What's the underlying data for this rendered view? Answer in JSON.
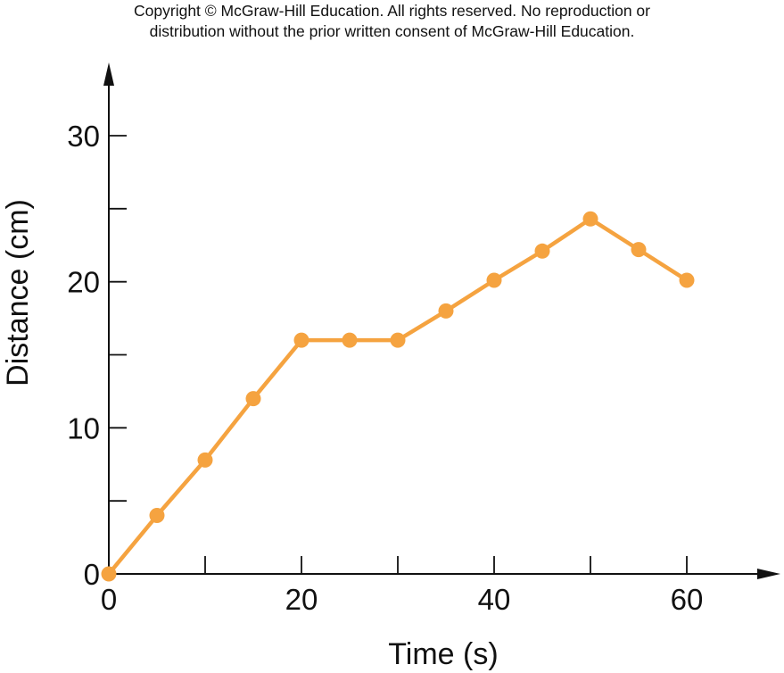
{
  "copyright": {
    "line1": "Copyright © McGraw-Hill Education.  All rights reserved. No reproduction or",
    "line2": "distribution without the prior written consent of McGraw-Hill Education."
  },
  "chart_data": {
    "type": "line",
    "xlabel": "Time (s)",
    "ylabel": "Distance (cm)",
    "xlim": [
      0,
      60
    ],
    "ylim": [
      0,
      30
    ],
    "x_ticks": [
      0,
      20,
      40,
      60
    ],
    "x_minor_ticks": [
      10,
      30,
      50
    ],
    "y_ticks": [
      0,
      10,
      20,
      30
    ],
    "y_minor_ticks": [
      5,
      15,
      25
    ],
    "grid": false,
    "series": [
      {
        "x": [
          0,
          5,
          10,
          15,
          20,
          25,
          30,
          35,
          40,
          45,
          50,
          55,
          60
        ],
        "y": [
          0,
          4,
          7.8,
          12,
          16,
          16,
          16,
          18,
          20.1,
          22.1,
          24.3,
          22.2,
          20.1
        ]
      }
    ],
    "line_color": "#F5A340",
    "axis_color": "#111111"
  }
}
